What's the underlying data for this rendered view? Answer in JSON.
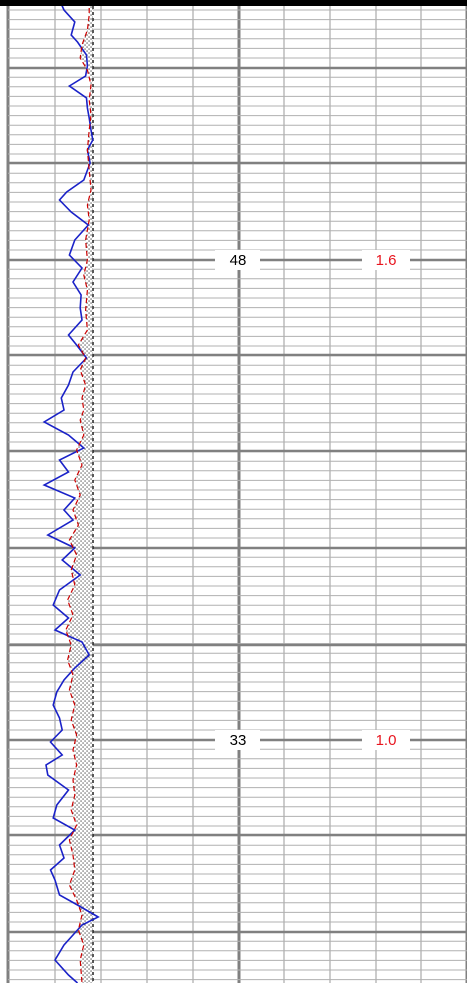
{
  "chart_data": {
    "type": "line",
    "title": "",
    "xlabel": "",
    "ylabel": "",
    "scale_labels": [
      {
        "row": 1,
        "left_value": "48",
        "right_value": "1.6"
      },
      {
        "row": 2,
        "left_value": "33",
        "right_value": "1.0"
      }
    ],
    "left_scale_color": "#000000",
    "right_scale_color": "#e8141e",
    "grid": true,
    "series": [
      {
        "style": "solid",
        "color": "#1a22c8",
        "points": [
          [
            0,
            55
          ],
          [
            10,
            60
          ],
          [
            22,
            72
          ],
          [
            35,
            68
          ],
          [
            42,
            75
          ],
          [
            55,
            85
          ],
          [
            66,
            86
          ],
          [
            76,
            84
          ],
          [
            86,
            66
          ],
          [
            98,
            85
          ],
          [
            108,
            86
          ],
          [
            118,
            88
          ],
          [
            130,
            90
          ],
          [
            140,
            92
          ],
          [
            150,
            86
          ],
          [
            163,
            89
          ],
          [
            180,
            82
          ],
          [
            192,
            63
          ],
          [
            200,
            55
          ],
          [
            212,
            68
          ],
          [
            225,
            87
          ],
          [
            240,
            72
          ],
          [
            255,
            66
          ],
          [
            268,
            80
          ],
          [
            282,
            70
          ],
          [
            295,
            79
          ],
          [
            308,
            78
          ],
          [
            320,
            80
          ],
          [
            335,
            65
          ],
          [
            345,
            74
          ],
          [
            358,
            85
          ],
          [
            372,
            70
          ],
          [
            385,
            65
          ],
          [
            398,
            57
          ],
          [
            410,
            60
          ],
          [
            422,
            38
          ],
          [
            435,
            65
          ],
          [
            448,
            82
          ],
          [
            460,
            55
          ],
          [
            472,
            65
          ],
          [
            485,
            38
          ],
          [
            498,
            72
          ],
          [
            510,
            60
          ],
          [
            520,
            70
          ],
          [
            535,
            42
          ],
          [
            548,
            72
          ],
          [
            560,
            58
          ],
          [
            575,
            78
          ],
          [
            590,
            55
          ],
          [
            605,
            48
          ],
          [
            618,
            65
          ],
          [
            630,
            50
          ],
          [
            642,
            80
          ],
          [
            655,
            88
          ],
          [
            668,
            72
          ],
          [
            680,
            60
          ],
          [
            692,
            52
          ],
          [
            705,
            48
          ],
          [
            718,
            55
          ],
          [
            730,
            58
          ],
          [
            742,
            45
          ],
          [
            755,
            58
          ],
          [
            765,
            40
          ],
          [
            775,
            42
          ],
          [
            790,
            65
          ],
          [
            805,
            52
          ],
          [
            818,
            48
          ],
          [
            830,
            72
          ],
          [
            845,
            55
          ],
          [
            858,
            60
          ],
          [
            870,
            45
          ],
          [
            880,
            50
          ],
          [
            895,
            55
          ],
          [
            905,
            75
          ],
          [
            917,
            98
          ],
          [
            925,
            80
          ],
          [
            935,
            70
          ],
          [
            945,
            60
          ],
          [
            960,
            50
          ],
          [
            975,
            65
          ],
          [
            983,
            75
          ]
        ]
      },
      {
        "style": "dashed",
        "color": "#cc0000",
        "points": [
          [
            0,
            88
          ],
          [
            15,
            88
          ],
          [
            30,
            86
          ],
          [
            45,
            80
          ],
          [
            58,
            78
          ],
          [
            70,
            86
          ],
          [
            85,
            90
          ],
          [
            100,
            88
          ],
          [
            115,
            90
          ],
          [
            130,
            88
          ],
          [
            150,
            86
          ],
          [
            170,
            88
          ],
          [
            190,
            90
          ],
          [
            205,
            86
          ],
          [
            220,
            88
          ],
          [
            240,
            84
          ],
          [
            260,
            86
          ],
          [
            275,
            82
          ],
          [
            290,
            86
          ],
          [
            310,
            84
          ],
          [
            330,
            86
          ],
          [
            345,
            76
          ],
          [
            358,
            84
          ],
          [
            370,
            78
          ],
          [
            385,
            84
          ],
          [
            398,
            80
          ],
          [
            410,
            82
          ],
          [
            420,
            78
          ],
          [
            435,
            82
          ],
          [
            450,
            74
          ],
          [
            465,
            80
          ],
          [
            480,
            72
          ],
          [
            495,
            78
          ],
          [
            510,
            70
          ],
          [
            525,
            76
          ],
          [
            540,
            66
          ],
          [
            555,
            74
          ],
          [
            570,
            68
          ],
          [
            585,
            72
          ],
          [
            600,
            64
          ],
          [
            615,
            70
          ],
          [
            630,
            62
          ],
          [
            645,
            68
          ],
          [
            660,
            64
          ],
          [
            675,
            70
          ],
          [
            690,
            66
          ],
          [
            705,
            72
          ],
          [
            720,
            68
          ],
          [
            735,
            74
          ],
          [
            750,
            70
          ],
          [
            765,
            74
          ],
          [
            780,
            70
          ],
          [
            795,
            72
          ],
          [
            810,
            68
          ],
          [
            825,
            74
          ],
          [
            840,
            66
          ],
          [
            855,
            70
          ],
          [
            870,
            72
          ],
          [
            885,
            66
          ],
          [
            900,
            74
          ],
          [
            915,
            80
          ],
          [
            930,
            76
          ],
          [
            945,
            82
          ],
          [
            960,
            78
          ],
          [
            983,
            80
          ]
        ]
      }
    ]
  }
}
